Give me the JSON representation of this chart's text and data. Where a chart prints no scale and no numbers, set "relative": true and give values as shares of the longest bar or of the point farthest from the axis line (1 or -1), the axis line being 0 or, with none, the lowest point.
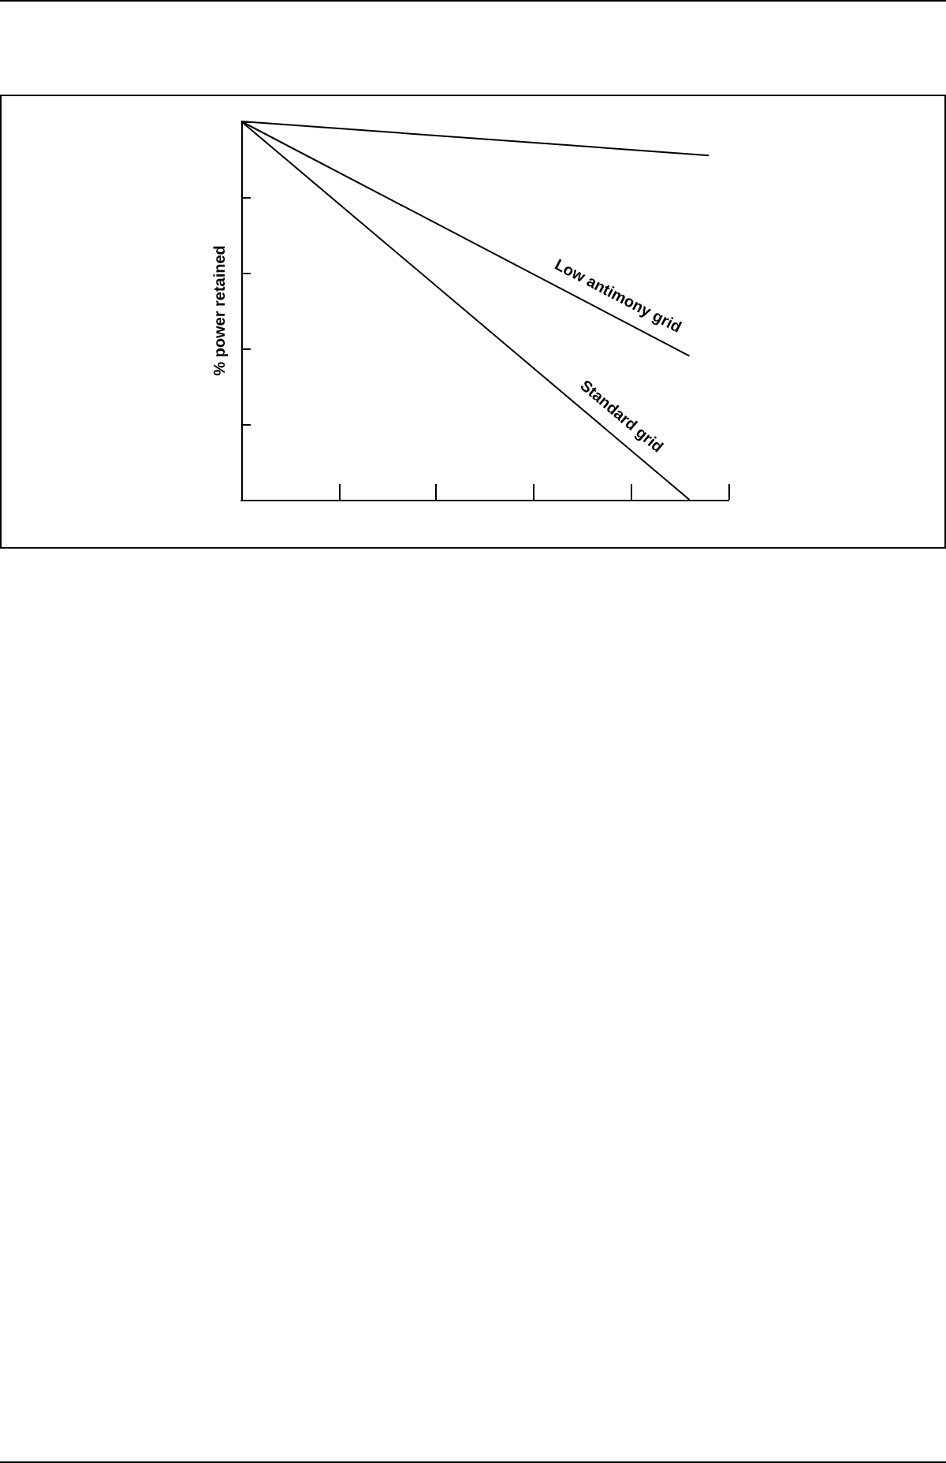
{
  "chart_data": {
    "type": "line",
    "ylabel": "% power retained",
    "relative": true,
    "marker": "none",
    "line_style": "solid",
    "categories": [
      null,
      null,
      null,
      null,
      null,
      null,
      null,
      null,
      null,
      null,
      null,
      null,
      null,
      null,
      null,
      null,
      null,
      null,
      null,
      null,
      null,
      null,
      null,
      null,
      null,
      null
    ],
    "series": [
      {
        "color": "#000000",
        "values": [
          1,
          null,
          null,
          null,
          null,
          null,
          null,
          null,
          null,
          null,
          null,
          null,
          null,
          null,
          null,
          null,
          null,
          null,
          null,
          null,
          null,
          null,
          null,
          null,
          0.91,
          null
        ]
      },
      {
        "name": "Low antimony grid",
        "color": "#000000",
        "values": [
          1,
          null,
          null,
          null,
          null,
          null,
          null,
          null,
          null,
          null,
          null,
          null,
          null,
          null,
          null,
          null,
          null,
          null,
          null,
          null,
          null,
          null,
          null,
          0.38,
          null,
          null
        ]
      },
      {
        "name": "Standard grid",
        "color": "#000000",
        "values": [
          1,
          null,
          null,
          null,
          null,
          null,
          null,
          null,
          null,
          null,
          null,
          null,
          null,
          null,
          null,
          null,
          null,
          null,
          null,
          null,
          null,
          null,
          null,
          0,
          null,
          null
        ]
      }
    ]
  }
}
